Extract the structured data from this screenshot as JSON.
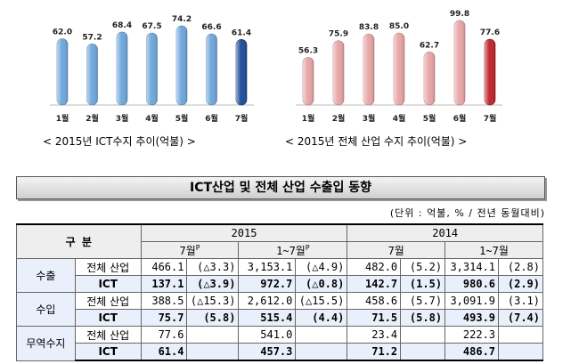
{
  "chart_data": [
    {
      "type": "bar",
      "title": "< 2015년 ICT수지 추이(억불) >",
      "categories": [
        "1월",
        "2월",
        "3월",
        "4월",
        "5월",
        "6월",
        "7월"
      ],
      "values": [
        62.0,
        57.2,
        68.4,
        67.5,
        74.2,
        66.6,
        61.4
      ],
      "value_labels": [
        "62.0",
        "57.2",
        "68.4",
        "67.5",
        "74.2",
        "66.6",
        "61.4"
      ],
      "bar_color": "#6fa8dc",
      "highlight_color": "#1f4e9a",
      "ylim": [
        0,
        80
      ]
    },
    {
      "type": "bar",
      "title": "< 2015년 전체 산업 수지 추이(억불) >",
      "categories": [
        "1월",
        "2월",
        "3월",
        "4월",
        "5월",
        "6월",
        "7월"
      ],
      "values": [
        56.3,
        75.9,
        83.8,
        85.0,
        62.7,
        99.8,
        77.6
      ],
      "value_labels": [
        "56.3",
        "75.9",
        "83.8",
        "85.0",
        "62.7",
        "99.8",
        "77.6"
      ],
      "bar_color": "#e8a6a6",
      "highlight_color": "#c0262b",
      "ylim": [
        0,
        105
      ]
    }
  ],
  "section_title": "ICT산업 및 전체 산업 수출입 동향",
  "unit_note": "(단위 : 억불, % / 전년 동월대비)",
  "table": {
    "header": {
      "category": "구  분",
      "year_2015": "2015",
      "year_2014": "2014",
      "month": "7월",
      "sup": "P",
      "cumulative": "1~7월"
    },
    "rows": [
      {
        "cat": "수출",
        "sub": "전체 산업",
        "v": [
          "466.1",
          "(△3.3)",
          "3,153.1",
          "(△4.9)",
          "482.0",
          "(5.2)",
          "3,314.1",
          "(2.8)"
        ],
        "bold": false
      },
      {
        "cat": "",
        "sub": "ICT",
        "v": [
          "137.1",
          "(△3.9)",
          "972.7",
          "(△0.8)",
          "142.7",
          "(1.5)",
          "980.6",
          "(2.9)"
        ],
        "bold": true
      },
      {
        "cat": "수입",
        "sub": "전체 산업",
        "v": [
          "388.5",
          "(△15.3)",
          "2,612.0",
          "(△15.5)",
          "458.6",
          "(5.7)",
          "3,091.9",
          "(3.1)"
        ],
        "bold": false
      },
      {
        "cat": "",
        "sub": "ICT",
        "v": [
          "75.7",
          "(5.8)",
          "515.4",
          "(4.4)",
          "71.5",
          "(5.8)",
          "493.9",
          "(7.4)"
        ],
        "bold": true
      },
      {
        "cat": "무역수지",
        "sub": "전체 산업",
        "v": [
          "77.6",
          "",
          "541.0",
          "",
          "23.4",
          "",
          "222.3",
          ""
        ],
        "bold": false
      },
      {
        "cat": "",
        "sub": "ICT",
        "v": [
          "61.4",
          "",
          "457.3",
          "",
          "71.2",
          "",
          "486.7",
          ""
        ],
        "bold": true
      }
    ]
  }
}
